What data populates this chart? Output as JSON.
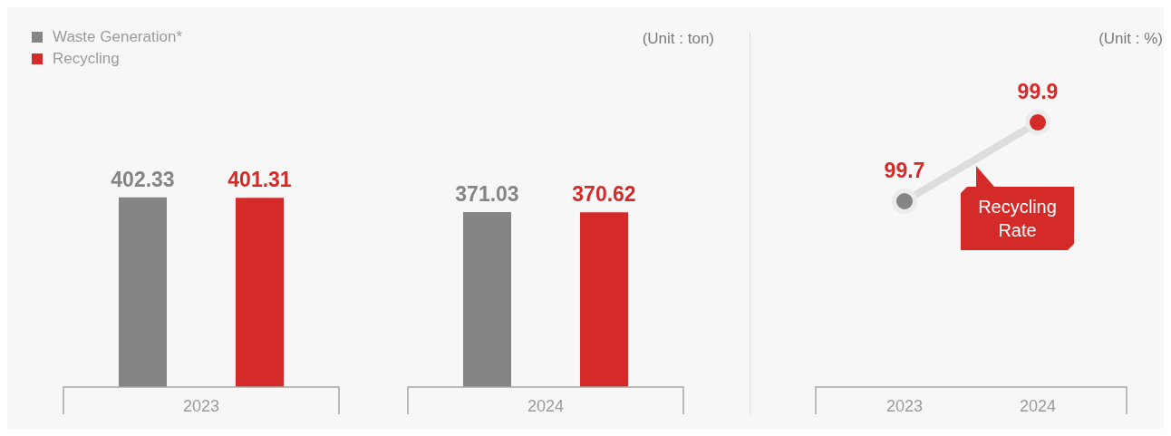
{
  "chart_data": [
    {
      "type": "bar",
      "categories": [
        "2023",
        "2024"
      ],
      "series": [
        {
          "name": "Waste Generation*",
          "color": "#858585",
          "values": [
            402.33,
            371.03
          ]
        },
        {
          "name": "Recycling",
          "color": "#d42a28",
          "values": [
            401.31,
            370.62
          ]
        }
      ],
      "tick_labels": "x",
      "data_labels": true,
      "legend": "top left",
      "annotations": [
        "(Unit : ton)"
      ]
    },
    {
      "type": "line",
      "categories": [
        "2023",
        "2024"
      ],
      "series": [
        {
          "name": "Recycling Rate",
          "color": "#dddddd",
          "colors": [
            "#858585",
            "#d42a28"
          ],
          "values": [
            99.7,
            99.9
          ]
        }
      ],
      "tick_labels": "x",
      "data_labels": true,
      "marker": "circle",
      "annotations": [
        "(Unit : %)"
      ]
    }
  ]
}
